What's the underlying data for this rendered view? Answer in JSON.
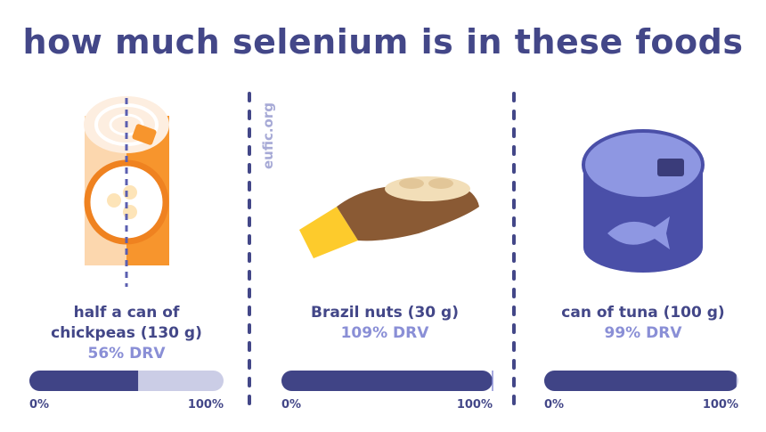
{
  "title": "how much selenium is in these foods",
  "source": "eufic.org",
  "scale": {
    "lim": [
      0,
      100
    ],
    "ticks": [
      {
        "value": 0,
        "label": "0%"
      },
      {
        "value": 100,
        "label": "100%"
      }
    ]
  },
  "items": [
    {
      "label": [
        "half a can of",
        "chickpeas (130 g)"
      ],
      "drv": 56,
      "drv_label": "56% DRV"
    },
    {
      "label": [
        "Brazil nuts (30 g)"
      ],
      "drv": 109,
      "drv_label": "109% DRV"
    },
    {
      "label": [
        "can of tuna (100 g)"
      ],
      "drv": 99,
      "drv_label": "99% DRV"
    }
  ]
}
